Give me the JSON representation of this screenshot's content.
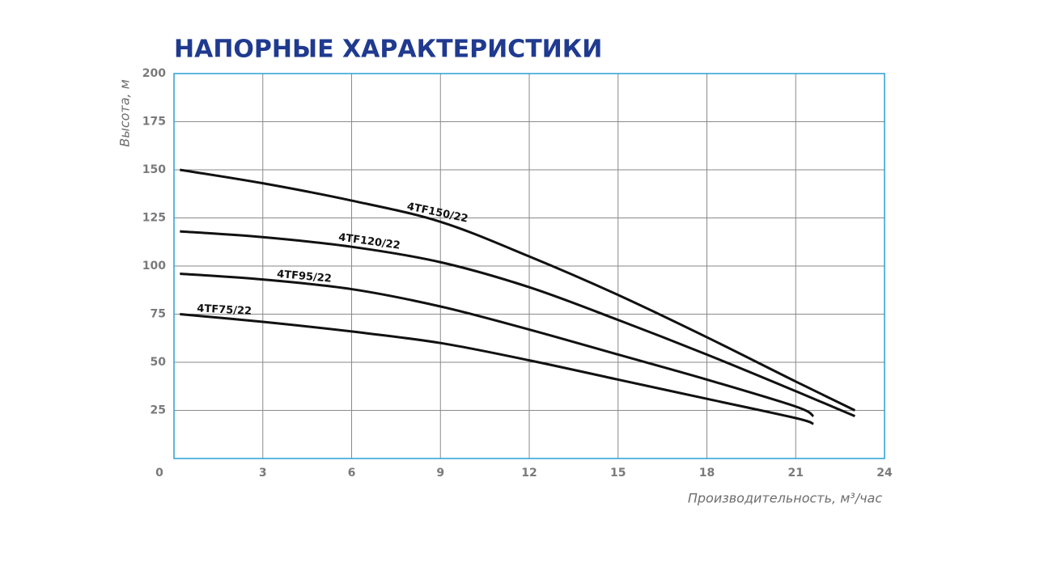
{
  "chart_data": {
    "type": "line",
    "title": "НАПОРНЫЕ ХАРАКТЕРИСТИКИ",
    "x_label": "Производительность, м³/час",
    "y_label": "Высота, м",
    "xlim": [
      0,
      24
    ],
    "ylim": [
      0,
      200
    ],
    "xticks": [
      0,
      3,
      6,
      9,
      12,
      15,
      18,
      21,
      24
    ],
    "yticks": [
      25,
      50,
      75,
      100,
      125,
      150,
      175,
      200
    ],
    "grid": true,
    "series": [
      {
        "name": "4TF150/22",
        "color": "#111111",
        "x": [
          0.2,
          3,
          6,
          9,
          12,
          15,
          18,
          21,
          23
        ],
        "values": [
          150,
          143,
          134,
          123,
          105,
          85,
          63,
          40,
          25
        ]
      },
      {
        "name": "4TF120/22",
        "color": "#111111",
        "x": [
          0.2,
          3,
          6,
          9,
          12,
          15,
          18,
          21,
          23
        ],
        "values": [
          118,
          115,
          110,
          102,
          89,
          72,
          54,
          35,
          22
        ]
      },
      {
        "name": "4TF95/22",
        "color": "#111111",
        "x": [
          0.2,
          3,
          6,
          9,
          12,
          15,
          18,
          21,
          21.6
        ],
        "values": [
          96,
          93,
          88,
          79,
          67,
          54,
          41,
          27,
          22
        ]
      },
      {
        "name": "4TF75/22",
        "color": "#111111",
        "x": [
          0.2,
          3,
          6,
          9,
          12,
          15,
          18,
          21,
          21.6
        ],
        "values": [
          75,
          71,
          66,
          60,
          51,
          41,
          31,
          21,
          18
        ]
      }
    ]
  }
}
